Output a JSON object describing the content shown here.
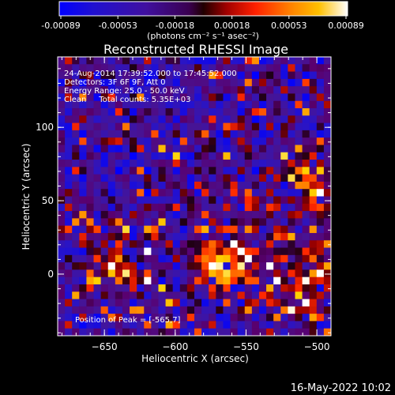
{
  "chart_data": {
    "type": "heatmap",
    "title": "Reconstructed RHESSI Image",
    "xlabel": "Heliocentric X (arcsec)",
    "ylabel": "Heliocentric Y (arcsec)",
    "xlim": [
      -683,
      -490
    ],
    "ylim": [
      -42,
      148
    ],
    "xticks": [
      -650,
      -600,
      -550,
      -500
    ],
    "yticks": [
      0,
      50,
      100
    ],
    "colorbar": {
      "ticks": [
        "-0.00089",
        "-0.00053",
        "-0.00018",
        "0.00018",
        "0.00053",
        "0.00089"
      ],
      "range": [
        -0.00089,
        0.00089
      ],
      "unit_label": "(photons cm⁻² s⁻¹ asec⁻²)"
    },
    "annotations": [
      "24-Aug-2014 17:39:52.000 to 17:45:52.000",
      "Detectors: 3F 6F 9F, Att 0",
      "Energy Range: 25.0 - 50.0 keV",
      "Clean     Total counts: 5.35E+03"
    ],
    "peak_label": "Position of Peak = [-565,7]",
    "peak": {
      "x": -565,
      "y": 7
    },
    "grid_cells": 38,
    "grid": false,
    "colors": {
      "background": "#000000",
      "colormap": [
        "#0000ff",
        "#4000a0",
        "#6a0080",
        "#900000",
        "#ff2000",
        "#ff8000",
        "#ffd000",
        "#ffffff"
      ]
    }
  },
  "footer": {
    "timestamp": "16-May-2022 10:02"
  }
}
